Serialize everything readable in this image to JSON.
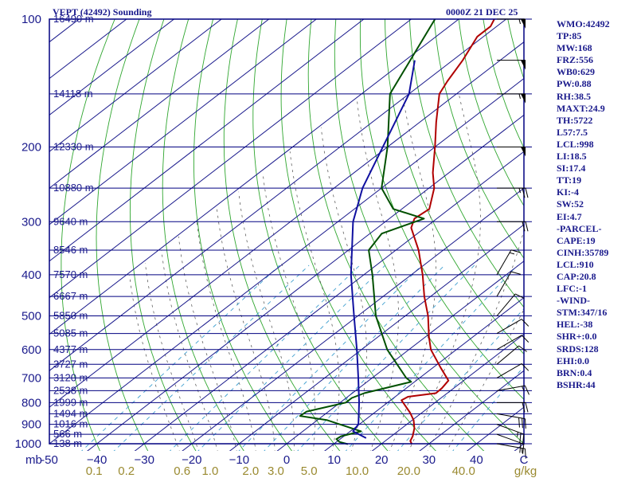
{
  "header": {
    "title": "VEPT (42492) Sounding",
    "timestamp": "0000Z 21 DEC 25"
  },
  "indices": [
    "WMO:42492",
    "TP:85",
    "MW:168",
    "FRZ:556",
    "WB0:629",
    "PW:0.88",
    "RH:38.5",
    "MAXT:24.9",
    "TH:5722",
    "L57:7.5",
    "LCL:998",
    "LI:18.5",
    "SI:17.4",
    "TT:19",
    "KI:-4",
    "SW:52",
    "EI:4.7",
    "-PARCEL-",
    "CAPE:19",
    "CINH:35789",
    "LCL:910",
    "CAP:20.8",
    "LFC:-1",
    "-WIND-",
    "STM:347/16",
    "HEL:-38",
    "SHR+:0.0",
    "SRDS:128",
    "EHI:0.0",
    "BRN:0.4",
    "BSHR:44"
  ],
  "colors": {
    "frame": "#000080",
    "isobar": "#000080",
    "isotherm": "#1a1a8c",
    "dry_adiabat": "#2fa62f",
    "moist_adiabat": "#606060",
    "mixing_ratio": "#40a0d0",
    "temperature": "#b00000",
    "dewpoint": "#005000",
    "parcel": "#1010a0",
    "axis_text": "#1a1a8c",
    "mixing_text": "#9a8a30"
  },
  "chart_data": {
    "type": "skew-t log-p sounding",
    "y_axis_label": "mb",
    "pressure_range": [
      100,
      1000
    ],
    "temperature_range_at_1000mb": [
      -50,
      50
    ],
    "pressure_ticks": [
      100,
      200,
      300,
      400,
      500,
      600,
      700,
      800,
      900,
      1000
    ],
    "temperature_ticks": [
      -50,
      -40,
      -30,
      -20,
      -10,
      0,
      10,
      20,
      30,
      40,
      50
    ],
    "temperature_tick_labels": [
      "-50",
      "−40",
      "−30",
      "−20",
      "−10",
      "0",
      "10",
      "20",
      "30",
      "40",
      "C"
    ],
    "mixing_ratio_labels": [
      {
        "g": 0.1,
        "label": "0.1"
      },
      {
        "g": 0.2,
        "label": "0.2"
      },
      {
        "g": 0.6,
        "label": "0.6"
      },
      {
        "g": 1.0,
        "label": "1.0"
      },
      {
        "g": 2.0,
        "label": "2.0"
      },
      {
        "g": 3.0,
        "label": "3.0"
      },
      {
        "g": 5.0,
        "label": "5.0"
      },
      {
        "g": 10.0,
        "label": "10.0"
      },
      {
        "g": 20.0,
        "label": "20.0"
      },
      {
        "g": 40.0,
        "label": "40.0"
      }
    ],
    "mixing_ratio_unit": "g/kg",
    "height_labels": [
      {
        "p": 100,
        "label": "16490 m"
      },
      {
        "p": 150,
        "label": "14118 m"
      },
      {
        "p": 200,
        "label": "12330 m"
      },
      {
        "p": 250,
        "label": "10880 m"
      },
      {
        "p": 300,
        "label": "9640 m"
      },
      {
        "p": 350,
        "label": "8546 m"
      },
      {
        "p": 400,
        "label": "7570 m"
      },
      {
        "p": 450,
        "label": "6667 m"
      },
      {
        "p": 500,
        "label": "5850 m"
      },
      {
        "p": 550,
        "label": "5085 m"
      },
      {
        "p": 600,
        "label": "4377 m"
      },
      {
        "p": 650,
        "label": "3727 m"
      },
      {
        "p": 700,
        "label": "3120 m"
      },
      {
        "p": 750,
        "label": "2538 m"
      },
      {
        "p": 800,
        "label": "1999 m"
      },
      {
        "p": 850,
        "label": "1494 m"
      },
      {
        "p": 900,
        "label": "1016 m"
      },
      {
        "p": 950,
        "label": "566 m"
      },
      {
        "p": 1000,
        "label": "138 m"
      }
    ],
    "series": [
      {
        "name": "temperature",
        "points": [
          {
            "p": 1002,
            "t": 26.5
          },
          {
            "p": 985,
            "t": 25.3
          },
          {
            "p": 960,
            "t": 24.5
          },
          {
            "p": 940,
            "t": 23.6
          },
          {
            "p": 920,
            "t": 22.7
          },
          {
            "p": 880,
            "t": 20.3
          },
          {
            "p": 845,
            "t": 17.5
          },
          {
            "p": 790,
            "t": 12.3
          },
          {
            "p": 775,
            "t": 12.7
          },
          {
            "p": 760,
            "t": 17.6
          },
          {
            "p": 740,
            "t": 17.5
          },
          {
            "p": 710,
            "t": 16.8
          },
          {
            "p": 660,
            "t": 11.4
          },
          {
            "p": 600,
            "t": 4.6
          },
          {
            "p": 560,
            "t": 0.7
          },
          {
            "p": 500,
            "t": -5.2
          },
          {
            "p": 450,
            "t": -11.3
          },
          {
            "p": 400,
            "t": -17.6
          },
          {
            "p": 350,
            "t": -25.2
          },
          {
            "p": 310,
            "t": -32.9
          },
          {
            "p": 295,
            "t": -34.7
          },
          {
            "p": 280,
            "t": -34.2
          },
          {
            "p": 250,
            "t": -38.9
          },
          {
            "p": 230,
            "t": -43.4
          },
          {
            "p": 200,
            "t": -50.0
          },
          {
            "p": 175,
            "t": -56.5
          },
          {
            "p": 150,
            "t": -63.6
          },
          {
            "p": 140,
            "t": -65.4
          },
          {
            "p": 125,
            "t": -67.9
          },
          {
            "p": 110,
            "t": -71.3
          },
          {
            "p": 104,
            "t": -71.3
          },
          {
            "p": 100,
            "t": -72.5
          }
        ]
      },
      {
        "name": "dewpoint",
        "points": [
          {
            "p": 1002,
            "t": 13.0
          },
          {
            "p": 990,
            "t": 10.6
          },
          {
            "p": 975,
            "t": 9.2
          },
          {
            "p": 960,
            "t": 9.4
          },
          {
            "p": 935,
            "t": 12.3
          },
          {
            "p": 880,
            "t": 2.1
          },
          {
            "p": 860,
            "t": -4.8
          },
          {
            "p": 840,
            "t": -4.6
          },
          {
            "p": 800,
            "t": 1.2
          },
          {
            "p": 780,
            "t": 1.2
          },
          {
            "p": 760,
            "t": 2.5
          },
          {
            "p": 715,
            "t": 9.3
          },
          {
            "p": 700,
            "t": 7.2
          },
          {
            "p": 600,
            "t": -4.6
          },
          {
            "p": 500,
            "t": -16.2
          },
          {
            "p": 400,
            "t": -28.2
          },
          {
            "p": 350,
            "t": -35.7
          },
          {
            "p": 320,
            "t": -37.5
          },
          {
            "p": 295,
            "t": -32.7
          },
          {
            "p": 280,
            "t": -41.8
          },
          {
            "p": 250,
            "t": -50.0
          },
          {
            "p": 200,
            "t": -60.0
          },
          {
            "p": 150,
            "t": -74.0
          },
          {
            "p": 100,
            "t": -85.0
          }
        ]
      },
      {
        "name": "parcel",
        "points": [
          {
            "p": 970,
            "t": 15.2
          },
          {
            "p": 935,
            "t": 10.6
          },
          {
            "p": 900,
            "t": 9.8
          },
          {
            "p": 850,
            "t": 7.0
          },
          {
            "p": 800,
            "t": 4.0
          },
          {
            "p": 700,
            "t": -2.9
          },
          {
            "p": 600,
            "t": -11.0
          },
          {
            "p": 500,
            "t": -20.8
          },
          {
            "p": 400,
            "t": -32.7
          },
          {
            "p": 300,
            "t": -46.8
          },
          {
            "p": 250,
            "t": -54.0
          },
          {
            "p": 200,
            "t": -61.0
          },
          {
            "p": 150,
            "t": -70.0
          },
          {
            "p": 125,
            "t": -78.0
          }
        ]
      }
    ],
    "wind_barbs": [
      {
        "p": 1000,
        "dir": 100,
        "kt": 15
      },
      {
        "p": 950,
        "dir": 110,
        "kt": 20
      },
      {
        "p": 900,
        "dir": 110,
        "kt": 25
      },
      {
        "p": 850,
        "dir": 100,
        "kt": 30
      },
      {
        "p": 800,
        "dir": 90,
        "kt": 20
      },
      {
        "p": 750,
        "dir": 80,
        "kt": 15
      },
      {
        "p": 700,
        "dir": 60,
        "kt": 10
      },
      {
        "p": 650,
        "dir": 50,
        "kt": 10
      },
      {
        "p": 600,
        "dir": 60,
        "kt": 10
      },
      {
        "p": 550,
        "dir": 60,
        "kt": 10
      },
      {
        "p": 500,
        "dir": 40,
        "kt": 10
      },
      {
        "p": 450,
        "dir": 30,
        "kt": 10
      },
      {
        "p": 400,
        "dir": 30,
        "kt": 15
      },
      {
        "p": 300,
        "dir": 90,
        "kt": 20
      },
      {
        "p": 250,
        "dir": 90,
        "kt": 25
      },
      {
        "p": 200,
        "dir": 90,
        "kt": 50
      },
      {
        "p": 150,
        "dir": 90,
        "kt": 55
      },
      {
        "p": 125,
        "dir": 90,
        "kt": 50
      },
      {
        "p": 100,
        "dir": 90,
        "kt": 55
      }
    ]
  }
}
